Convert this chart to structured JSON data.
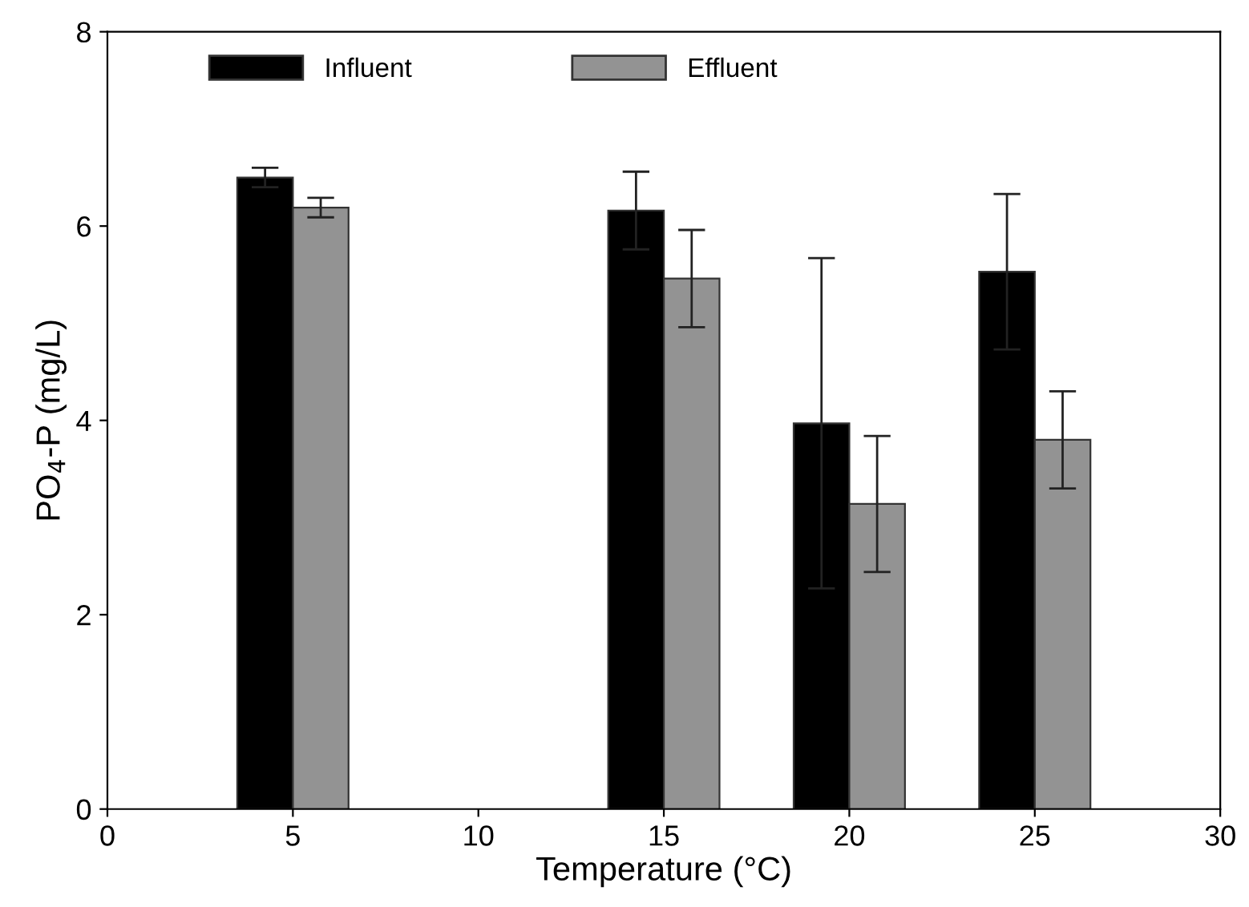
{
  "chart_data": {
    "type": "bar",
    "xlabel": "Temperature (°C)",
    "ylabel": "PO$_{4}$-P (mg/L)",
    "x": [
      5,
      15,
      20,
      25
    ],
    "series": [
      {
        "name": "Influent",
        "color": "#000000",
        "values": [
          6.5,
          6.16,
          3.97,
          5.53
        ],
        "errors": [
          0.1,
          0.4,
          1.7,
          0.8
        ]
      },
      {
        "name": "Effluent",
        "color": "#939393",
        "values": [
          6.19,
          5.46,
          3.14,
          3.8
        ],
        "errors": [
          0.1,
          0.5,
          0.7,
          0.5
        ]
      }
    ],
    "xlim": [
      0,
      30
    ],
    "xticks": [
      0,
      5,
      10,
      15,
      20,
      25,
      30
    ],
    "ylim": [
      0,
      8
    ],
    "yticks": [
      0,
      2,
      4,
      6,
      8
    ],
    "grid": false,
    "legend": "top left"
  }
}
